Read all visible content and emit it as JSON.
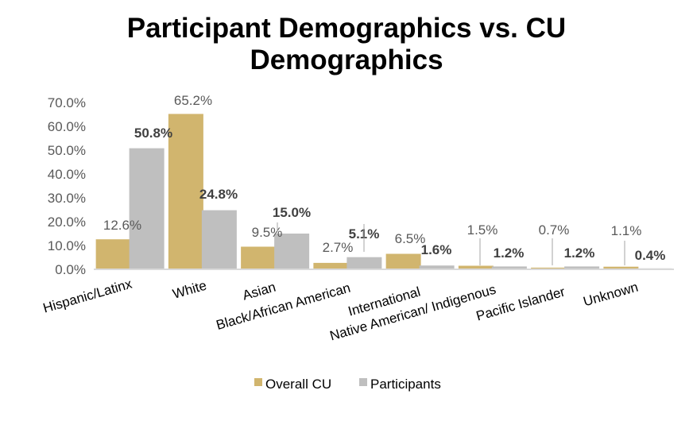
{
  "chart_data": {
    "type": "bar",
    "title_line1": "Participant Demographics vs. CU",
    "title_line2": "Demographics",
    "categories": [
      "Hispanic/Latinx",
      "White",
      "Asian",
      "Black/African  American",
      "International",
      "Native  American/  Indigenous",
      "Pacific  Islander",
      "Unknown"
    ],
    "series": [
      {
        "name": "Overall CU",
        "color": "#D1B56E",
        "values": [
          12.6,
          65.2,
          9.5,
          2.7,
          6.5,
          1.5,
          0.7,
          1.1
        ],
        "labels": [
          "12.6%",
          "65.2%",
          "9.5%",
          "2.7%",
          "6.5%",
          "1.5%",
          "0.7%",
          "1.1%"
        ]
      },
      {
        "name": "Participants",
        "color": "#BFBFBF",
        "values": [
          50.8,
          24.8,
          15.0,
          5.1,
          1.6,
          1.2,
          1.2,
          0.4
        ],
        "labels": [
          "50.8%",
          "24.8%",
          "15.0%",
          "5.1%",
          "1.6%",
          "1.2%",
          "1.2%",
          "0.4%"
        ]
      }
    ],
    "ylim": [
      0,
      70
    ],
    "yticks": [
      "0.0%",
      "10.0%",
      "20.0%",
      "30.0%",
      "40.0%",
      "50.0%",
      "60.0%",
      "70.0%"
    ],
    "grid": false,
    "legend_position": "bottom"
  }
}
